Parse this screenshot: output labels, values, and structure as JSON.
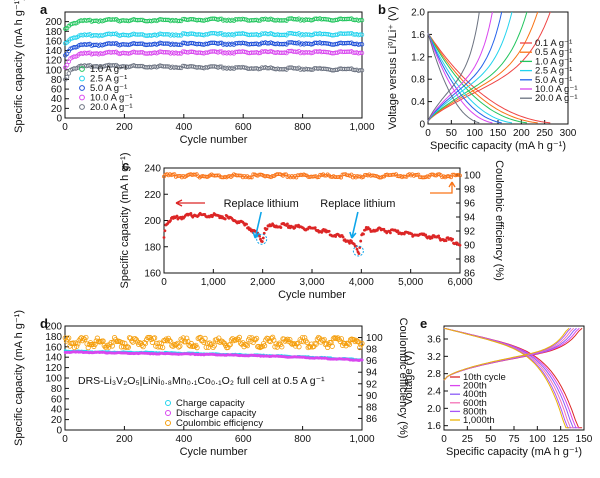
{
  "chart_data": [
    {
      "panel": "a",
      "type": "scatter",
      "xlabel": "Cycle number",
      "ylabel": "Specific capacity (mA h g⁻¹)",
      "xlim": [
        0,
        1000
      ],
      "ylim": [
        0,
        220
      ],
      "xticks": [
        0,
        200,
        400,
        600,
        800,
        1000
      ],
      "yticks": [
        0,
        20,
        40,
        60,
        80,
        100,
        120,
        140,
        160,
        180,
        200
      ],
      "xtick_labels": [
        "0",
        "200",
        "400",
        "600",
        "800",
        "1,000"
      ],
      "legend_position": "bottom-left",
      "series": [
        {
          "name": "1.0 A g⁻¹",
          "color": "#22c55e",
          "x": [
            1,
            20,
            60,
            150,
            300,
            500,
            700,
            850,
            1000
          ],
          "y": [
            185,
            198,
            202,
            204,
            204,
            205,
            205,
            206,
            205
          ]
        },
        {
          "name": "2.5 A g⁻¹",
          "color": "#22d3ee",
          "x": [
            1,
            20,
            60,
            150,
            300,
            500,
            700,
            850,
            1000
          ],
          "y": [
            155,
            168,
            172,
            174,
            174,
            175,
            175,
            175,
            175
          ]
        },
        {
          "name": "5.0 A g⁻¹",
          "color": "#1d4ed8",
          "x": [
            1,
            20,
            60,
            150,
            300,
            500,
            700,
            850,
            1000
          ],
          "y": [
            130,
            148,
            152,
            154,
            155,
            155,
            156,
            156,
            155
          ]
        },
        {
          "name": "10.0 A g⁻¹",
          "color": "#d946ef",
          "x": [
            1,
            20,
            60,
            150,
            300,
            500,
            700,
            850,
            1000
          ],
          "y": [
            105,
            128,
            134,
            136,
            137,
            137,
            138,
            138,
            137
          ]
        },
        {
          "name": "20.0 A g⁻¹",
          "color": "#6b7280",
          "x": [
            1,
            20,
            60,
            150,
            300,
            500,
            700,
            850,
            1000
          ],
          "y": [
            80,
            104,
            108,
            109,
            108,
            106,
            104,
            103,
            101
          ]
        }
      ]
    },
    {
      "panel": "b",
      "type": "line",
      "xlabel": "Specific capacity (mA h g⁻¹)",
      "ylabel": "Voltage versus Li⁰/Li⁺ (V)",
      "xlim": [
        0,
        300
      ],
      "ylim": [
        0,
        2.0
      ],
      "xticks": [
        0,
        50,
        100,
        150,
        200,
        250,
        300
      ],
      "yticks": [
        0,
        0.4,
        0.8,
        1.2,
        1.6,
        2.0
      ],
      "ytick_labels": [
        "0",
        "0.4",
        "0.8",
        "1.2",
        "1.6",
        "2.0"
      ],
      "legend_position": "right",
      "series": [
        {
          "name": "0.1 A g⁻¹",
          "color": "#ef4444",
          "capacity": 262
        },
        {
          "name": "0.5 A g⁻¹",
          "color": "#f97316",
          "capacity": 235
        },
        {
          "name": "1.0 A g⁻¹",
          "color": "#22c55e",
          "capacity": 212
        },
        {
          "name": "2.5 A g⁻¹",
          "color": "#22d3ee",
          "capacity": 180
        },
        {
          "name": "5.0 A g⁻¹",
          "color": "#2563eb",
          "capacity": 158
        },
        {
          "name": "10.0 A g⁻¹",
          "color": "#d946ef",
          "capacity": 138
        },
        {
          "name": "20.0 A g⁻¹",
          "color": "#6b7280",
          "capacity": 110
        }
      ]
    },
    {
      "panel": "c",
      "type": "scatter",
      "xlabel": "Cycle number",
      "ylabel": "Specific capacity (mA h g⁻¹)",
      "y2label": "Coulombic efficiency (%)",
      "xlim": [
        0,
        6000
      ],
      "ylim": [
        160,
        240
      ],
      "y2lim": [
        86,
        101
      ],
      "xticks": [
        0,
        1000,
        2000,
        3000,
        4000,
        5000,
        6000
      ],
      "xtick_labels": [
        "0",
        "1,000",
        "2,000",
        "3,000",
        "4,000",
        "5,000",
        "6,000"
      ],
      "yticks": [
        160,
        180,
        200,
        220,
        240
      ],
      "y2ticks": [
        86,
        88,
        90,
        92,
        94,
        96,
        98,
        100
      ],
      "annotations": [
        "Replace lithium",
        "Replace lithium"
      ],
      "annotation_x": [
        1970,
        3930
      ],
      "series": [
        {
          "name": "Specific capacity",
          "color": "#dc2626",
          "x": [
            0,
            30,
            100,
            300,
            600,
            900,
            1200,
            1500,
            1700,
            1850,
            1950,
            1990,
            2000,
            2050,
            2200,
            2500,
            2900,
            3300,
            3600,
            3800,
            3900,
            3950,
            3960,
            4000,
            4100,
            4300,
            4700,
            5100,
            5500,
            5800,
            6000
          ],
          "y": [
            187,
            198,
            201,
            203,
            205,
            205,
            204,
            200,
            196,
            192,
            188,
            185,
            186,
            195,
            197,
            197,
            195,
            192,
            188,
            184,
            180,
            176,
            178,
            190,
            194,
            194,
            192,
            190,
            188,
            186,
            183
          ]
        },
        {
          "name": "Coulombic efficiency",
          "color": "#f97316",
          "x": [
            0,
            1000,
            2000,
            3000,
            4000,
            5000,
            6000
          ],
          "y": [
            100,
            100,
            100,
            100,
            100,
            100,
            100
          ]
        }
      ]
    },
    {
      "panel": "d",
      "type": "scatter",
      "title": "DRS-Li₃V₂O₅|LiNi₀.₈Mn₀.₁Co₀.₁O₂ full cell at 0.5 A g⁻¹",
      "xlabel": "Cycle number",
      "ylabel": "Specific capacity (mA h g⁻¹)",
      "y2label": "Coulombic efficiency (%)",
      "xlim": [
        0,
        1000
      ],
      "ylim": [
        0,
        200
      ],
      "y2lim": [
        84,
        102
      ],
      "xticks": [
        0,
        200,
        400,
        600,
        800,
        1000
      ],
      "xtick_labels": [
        "0",
        "200",
        "400",
        "600",
        "800",
        "1,000"
      ],
      "yticks": [
        0,
        20,
        40,
        60,
        80,
        100,
        120,
        140,
        160,
        180,
        200
      ],
      "y2ticks": [
        86,
        88,
        90,
        92,
        94,
        96,
        98,
        100
      ],
      "legend_position": "lower-center",
      "series": [
        {
          "name": "Charge capacity",
          "color": "#22d3ee",
          "x": [
            1,
            100,
            300,
            500,
            700,
            900,
            1000
          ],
          "y": [
            152,
            150,
            149,
            146,
            143,
            138,
            135
          ]
        },
        {
          "name": "Discharge capacity",
          "color": "#d946ef",
          "x": [
            1,
            100,
            300,
            500,
            700,
            900,
            1000
          ],
          "y": [
            150,
            149,
            147,
            145,
            142,
            137,
            134
          ]
        },
        {
          "name": "Coulombic efficiency",
          "color": "#f59e0b",
          "x": [
            1,
            100,
            300,
            500,
            700,
            900,
            1000
          ],
          "y": [
            99.5,
            99.6,
            99.6,
            99.6,
            99.6,
            99.6,
            99.6
          ]
        }
      ]
    },
    {
      "panel": "e",
      "type": "line",
      "xlabel": "Specific capacity (mA h g⁻¹)",
      "ylabel": "Voltage (V)",
      "xlim": [
        0,
        150
      ],
      "ylim": [
        1.5,
        3.9
      ],
      "xticks": [
        0,
        25,
        50,
        75,
        100,
        125,
        150
      ],
      "yticks": [
        1.6,
        2.0,
        2.4,
        2.8,
        3.2,
        3.6
      ],
      "ytick_labels": [
        "1.6",
        "2.0",
        "2.4",
        "2.8",
        "3.2",
        "3.6"
      ],
      "legend_position": "bottom-left",
      "series": [
        {
          "name": "10th cycle",
          "color": "#dc2626",
          "capacity": 148
        },
        {
          "name": "200th",
          "color": "#d946ef",
          "capacity": 145
        },
        {
          "name": "400th",
          "color": "#8b5cf6",
          "capacity": 142
        },
        {
          "name": "600th",
          "color": "#f472b6",
          "capacity": 139
        },
        {
          "name": "800th",
          "color": "#a855f7",
          "capacity": 136
        },
        {
          "name": "1,000th",
          "color": "#eab308",
          "capacity": 134
        }
      ]
    }
  ]
}
